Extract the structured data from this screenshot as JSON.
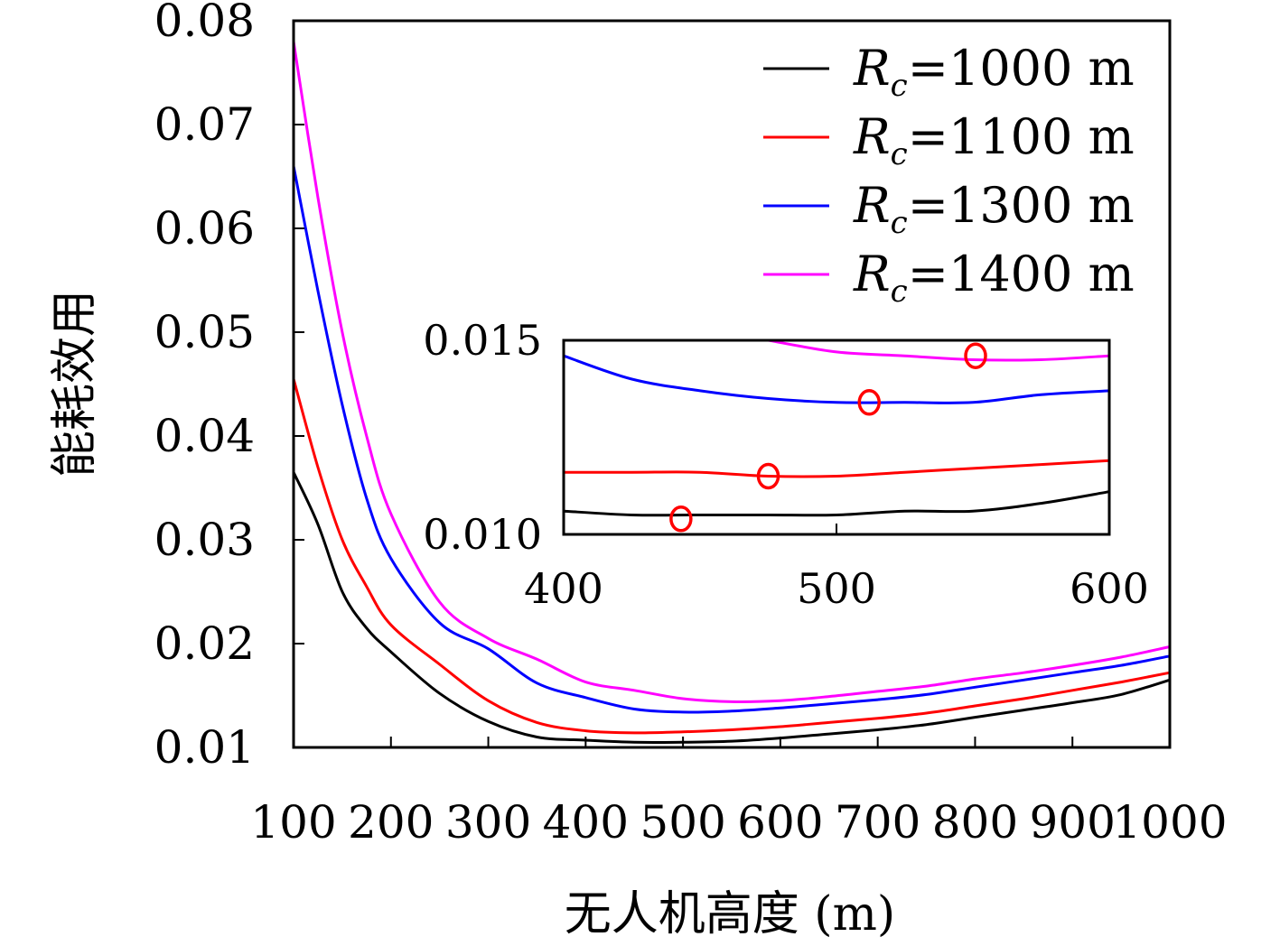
{
  "chart_data": [
    {
      "type": "line",
      "xlabel": "无人机高度 (m)",
      "ylabel": "能耗效用",
      "xlim": [
        100,
        1000
      ],
      "ylim": [
        0.01,
        0.08
      ],
      "x_ticks": [
        100,
        200,
        300,
        400,
        500,
        600,
        700,
        800,
        900,
        1000
      ],
      "y_ticks": [
        "0.01",
        "0.02",
        "0.03",
        "0.04",
        "0.05",
        "0.06",
        "0.07",
        "0.08"
      ],
      "grid": false,
      "legend_position": "top-right",
      "x": [
        100,
        125,
        150,
        175,
        200,
        250,
        300,
        350,
        400,
        450,
        500,
        550,
        600,
        650,
        700,
        750,
        800,
        850,
        900,
        950,
        1000
      ],
      "series": [
        {
          "name": "Rc=1000 m",
          "legend_base": "R",
          "legend_sub": "c",
          "legend_rest": "=1000 m",
          "color": "#000000",
          "values": [
            0.0365,
            0.0315,
            0.025,
            0.0215,
            0.0192,
            0.0152,
            0.0125,
            0.011,
            0.0107,
            0.0105,
            0.0105,
            0.0106,
            0.0109,
            0.0113,
            0.0117,
            0.0122,
            0.0129,
            0.0136,
            0.0143,
            0.0151,
            0.0165
          ]
        },
        {
          "name": "Rc=1100 m",
          "legend_base": "R",
          "legend_sub": "c",
          "legend_rest": "=1100 m",
          "color": "#ff0000",
          "values": [
            0.0455,
            0.037,
            0.03,
            0.0255,
            0.0218,
            0.018,
            0.0145,
            0.0124,
            0.0116,
            0.0114,
            0.0115,
            0.0117,
            0.012,
            0.0124,
            0.0128,
            0.0133,
            0.014,
            0.0147,
            0.0155,
            0.0163,
            0.0172
          ]
        },
        {
          "name": "Rc=1300 m",
          "legend_base": "R",
          "legend_sub": "c",
          "legend_rest": "=1300 m",
          "color": "#0000ff",
          "values": [
            0.066,
            0.054,
            0.043,
            0.034,
            0.0282,
            0.022,
            0.0195,
            0.0162,
            0.0148,
            0.0137,
            0.0134,
            0.0135,
            0.0138,
            0.0142,
            0.0146,
            0.0151,
            0.0158,
            0.0165,
            0.0172,
            0.0179,
            0.0188
          ]
        },
        {
          "name": "Rc=1400 m",
          "legend_base": "R",
          "legend_sub": "c",
          "legend_rest": "=1400 m",
          "color": "#ff00ff",
          "values": [
            0.078,
            0.063,
            0.05,
            0.04,
            0.0325,
            0.024,
            0.0205,
            0.0185,
            0.0163,
            0.0155,
            0.0147,
            0.0144,
            0.0145,
            0.0149,
            0.0154,
            0.0159,
            0.0166,
            0.0172,
            0.0179,
            0.0187,
            0.0197
          ]
        }
      ]
    },
    {
      "type": "line",
      "role": "inset",
      "xlim": [
        400,
        600
      ],
      "ylim": [
        0.01,
        0.015
      ],
      "x_ticks": [
        400,
        500,
        600
      ],
      "y_ticks": [
        "0.010",
        "0.015"
      ],
      "x": [
        400,
        425,
        450,
        475,
        500,
        525,
        550,
        575,
        600
      ],
      "series": [
        {
          "name": "Rc=1000 m",
          "color": "#000000",
          "values": [
            0.0106,
            0.0105,
            0.0105,
            0.0105,
            0.0105,
            0.0106,
            0.0106,
            0.0108,
            0.0111
          ],
          "minimum": {
            "x": 443,
            "y": 0.0104
          }
        },
        {
          "name": "Rc=1100 m",
          "color": "#ff0000",
          "values": [
            0.0116,
            0.0116,
            0.0116,
            0.0115,
            0.0115,
            0.0116,
            0.0117,
            0.0118,
            0.0119
          ],
          "minimum": {
            "x": 475,
            "y": 0.0115
          }
        },
        {
          "name": "Rc=1300 m",
          "color": "#0000ff",
          "values": [
            0.0146,
            0.014,
            0.0137,
            0.0135,
            0.0134,
            0.0134,
            0.0134,
            0.0136,
            0.0137
          ],
          "minimum": {
            "x": 512,
            "y": 0.0134
          }
        },
        {
          "name": "Rc=1400 m",
          "color": "#ff00ff",
          "values": [
            null,
            null,
            null,
            0.015,
            0.0147,
            0.0146,
            0.0145,
            0.0145,
            0.0146
          ],
          "minimum": {
            "x": 551,
            "y": 0.0146
          }
        }
      ],
      "marker_color": "#ff0000"
    }
  ]
}
